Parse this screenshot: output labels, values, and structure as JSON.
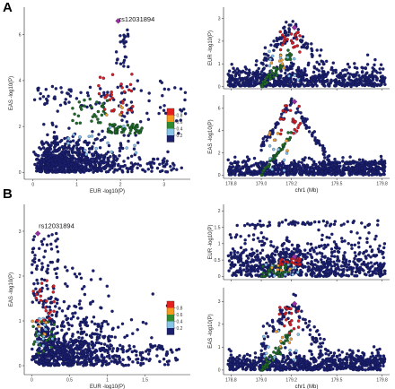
{
  "panels": [
    {
      "letter": "A",
      "annotation": "rs12031894"
    },
    {
      "letter": "B",
      "annotation": "rs12031894"
    }
  ],
  "colors": {
    "dark_blue": "#1a1f6e",
    "light_blue": "#86c5e8",
    "green": "#1f6b1f",
    "orange": "#f0a030",
    "red": "#d42020",
    "purple": "#9a2fa3"
  },
  "legend": {
    "tick_labels": [
      "0.8",
      "0.6",
      "0.4",
      "0.2"
    ],
    "colors": [
      "#e51f1f",
      "#f59a1e",
      "#2e8b2e",
      "#86c5e8",
      "#1a1f6e"
    ]
  },
  "chart_data": [
    {
      "type": "scatter",
      "panel": "A",
      "name": "A-scatter",
      "xlabel": "EUR -log10(P)",
      "ylabel": "EAS -log10(P)",
      "xlim": [
        -0.2,
        3.6
      ],
      "ylim": [
        -0.3,
        7.2
      ],
      "xticks": [
        "0",
        "1",
        "2",
        "3"
      ],
      "xtick_vals": [
        0,
        1,
        2,
        3
      ],
      "yticks": [
        "0",
        "2",
        "4",
        "6"
      ],
      "ytick_vals": [
        0,
        2,
        4,
        6
      ],
      "grid": false,
      "lead_snp": {
        "label": "rs12031894",
        "x": 1.95,
        "y": 6.6
      }
    },
    {
      "type": "scatter",
      "panel": "A",
      "name": "A-eur-manhattan",
      "xlabel": "",
      "ylabel": "EUR -log10(P)",
      "xlim": [
        178.75,
        179.85
      ],
      "ylim": [
        -0.1,
        3.5
      ],
      "xticks": [],
      "xtick_vals": [
        178.8,
        179.0,
        179.2,
        179.5,
        179.8
      ],
      "yticks": [
        "0",
        "1",
        "2",
        "3"
      ],
      "ytick_vals": [
        0,
        1,
        2,
        3
      ],
      "grid": false
    },
    {
      "type": "scatter",
      "panel": "A",
      "name": "A-eas-manhattan",
      "xlabel": "chr1 (Mb)",
      "ylabel": "EAS -log10(P)",
      "xlim": [
        178.75,
        179.85
      ],
      "ylim": [
        -0.3,
        7.2
      ],
      "xticks": [
        "178.8",
        "179.0",
        "179.2",
        "179.5",
        "179.8"
      ],
      "xtick_vals": [
        178.8,
        179.0,
        179.2,
        179.5,
        179.8
      ],
      "yticks": [
        "0",
        "2",
        "4",
        "6"
      ],
      "ytick_vals": [
        0,
        2,
        4,
        6
      ],
      "grid": false
    },
    {
      "type": "scatter",
      "panel": "B",
      "name": "B-scatter",
      "xlabel": "EUR -log10(P)",
      "ylabel": "EAS -log10(P)",
      "xlim": [
        -0.1,
        2.1
      ],
      "ylim": [
        -0.2,
        3.6
      ],
      "xticks": [
        "0",
        "0.5",
        "1",
        "1.5"
      ],
      "xtick_vals": [
        0,
        0.5,
        1,
        1.5
      ],
      "yticks": [
        "0",
        "1",
        "2",
        "3"
      ],
      "ytick_vals": [
        0,
        1,
        2,
        3
      ],
      "grid": false,
      "lead_snp": {
        "label": "rs12031894",
        "x": 0.08,
        "y": 2.95
      }
    },
    {
      "type": "scatter",
      "panel": "B",
      "name": "B-eur-manhattan",
      "xlabel": "",
      "ylabel": "EUR -log10(P)",
      "xlim": [
        178.75,
        179.85
      ],
      "ylim": [
        -0.1,
        2.2
      ],
      "xticks": [],
      "xtick_vals": [
        178.8,
        179.0,
        179.2,
        179.5,
        179.8
      ],
      "yticks": [
        "0",
        "0.5",
        "1",
        "1.5",
        "2"
      ],
      "ytick_vals": [
        0,
        0.5,
        1,
        1.5,
        2
      ],
      "grid": false
    },
    {
      "type": "scatter",
      "panel": "B",
      "name": "B-eas-manhattan",
      "xlabel": "chr1 (Mb)",
      "ylabel": "EAS -log10(P)",
      "xlim": [
        178.75,
        179.85
      ],
      "ylim": [
        -0.2,
        3.6
      ],
      "xticks": [
        "178.8",
        "179.0",
        "179.2",
        "179.5",
        "179.8"
      ],
      "xtick_vals": [
        178.8,
        179.0,
        179.2,
        179.5,
        179.8
      ],
      "yticks": [
        "0",
        "1",
        "2",
        "3"
      ],
      "ytick_vals": [
        0,
        1,
        2,
        3
      ],
      "grid": false
    }
  ]
}
